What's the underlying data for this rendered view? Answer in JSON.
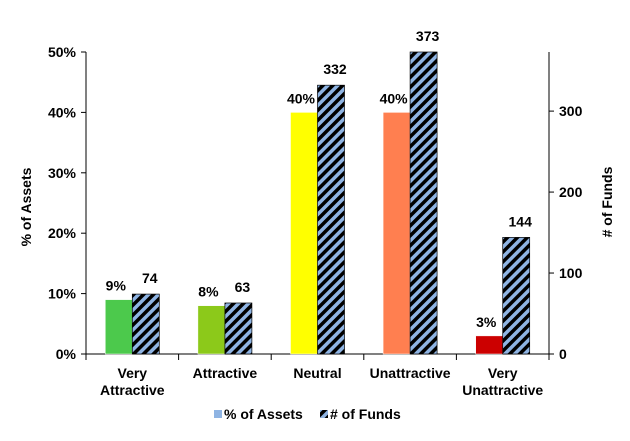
{
  "chart_data": {
    "type": "bar",
    "categories": [
      [
        "Very",
        "Attractive"
      ],
      [
        "Attractive"
      ],
      [
        "Neutral"
      ],
      [
        "Unattractive"
      ],
      [
        "Very",
        "Unattractive"
      ]
    ],
    "series": [
      {
        "name": "% of Assets",
        "axis": "left",
        "values": [
          9,
          8,
          40,
          40,
          3
        ],
        "labels": [
          "9%",
          "8%",
          "40%",
          "40%",
          "3%"
        ],
        "colors": [
          "#4cc94c",
          "#8cc91a",
          "#ffff00",
          "#ff7f50",
          "#cc0000"
        ]
      },
      {
        "name": "# of Funds",
        "axis": "right",
        "values": [
          74,
          63,
          332,
          373,
          144
        ],
        "labels": [
          "74",
          "63",
          "332",
          "373",
          "144"
        ],
        "pattern": "stripes",
        "colors": [
          "#8fb4e3",
          "#000000"
        ]
      }
    ],
    "y_left": {
      "label": "% of Assets",
      "ylim": [
        0,
        50
      ],
      "ticks": [
        "0%",
        "10%",
        "20%",
        "30%",
        "40%",
        "50%"
      ]
    },
    "y_right": {
      "label": "# of Funds",
      "ylim": [
        0,
        373
      ],
      "ticks": [
        "0",
        "100",
        "200",
        "300"
      ]
    },
    "grid": false,
    "legend": "bottom"
  }
}
